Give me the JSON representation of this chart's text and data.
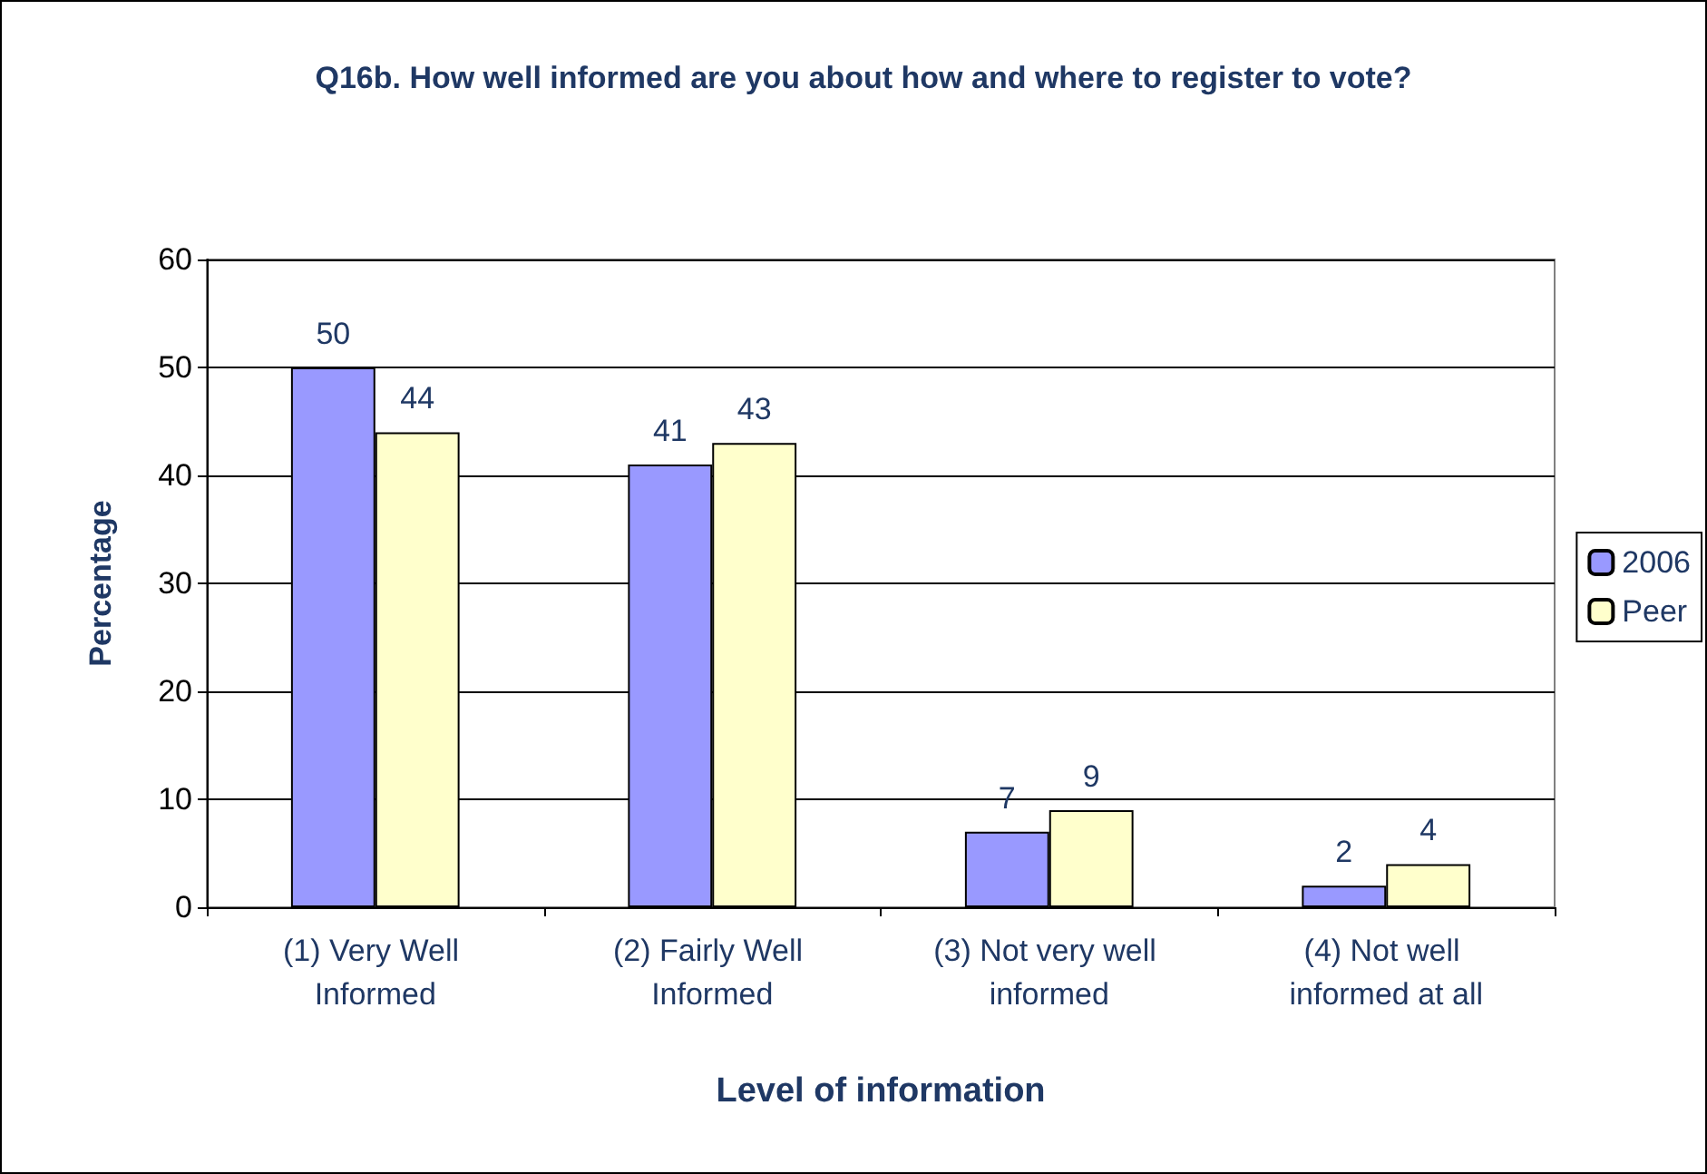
{
  "chart_data": {
    "type": "bar",
    "title": "Q16b. How well informed are you about how and where to register to vote?",
    "xlabel": "Level of information",
    "ylabel": "Percentage",
    "categories": [
      "(1) Very Well Informed",
      "(2) Fairly Well Informed",
      "(3) Not very well informed",
      "(4) Not well informed at all"
    ],
    "series": [
      {
        "name": "2006",
        "color": "#9999ff",
        "values": [
          50,
          41,
          7,
          2
        ]
      },
      {
        "name": "Peer",
        "color": "#ffffcc",
        "values": [
          44,
          43,
          9,
          4
        ]
      }
    ],
    "ylim": [
      0,
      60
    ],
    "yticks": [
      0,
      10,
      20,
      30,
      40,
      50,
      60
    ],
    "grid": "y",
    "legend": "right",
    "data_labels": true
  }
}
